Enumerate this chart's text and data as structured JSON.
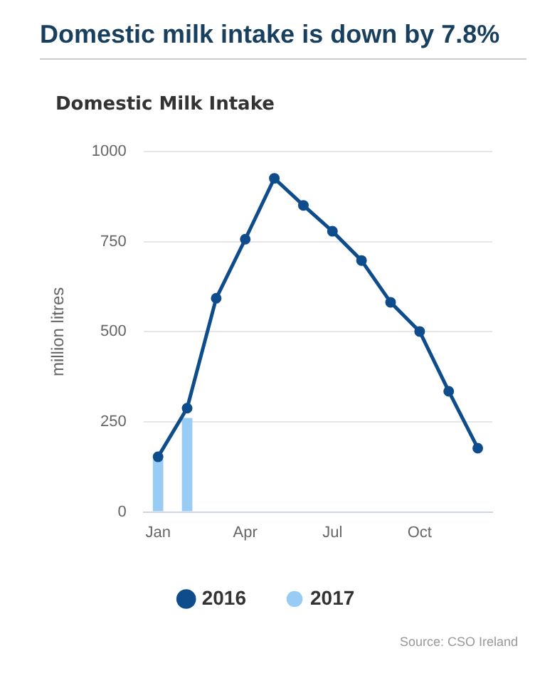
{
  "chart_data": {
    "type": "line",
    "title": "Domestic milk intake is down by 7.8%",
    "subtitle": "Domestic Milk Intake",
    "ylabel": "million litres",
    "categories": [
      "Jan",
      null,
      null,
      "Apr",
      null,
      null,
      "Jul",
      null,
      null,
      "Oct",
      null,
      null
    ],
    "series": [
      {
        "name": "2016",
        "color": "#0f4c8c",
        "values": [
          153,
          288,
          593,
          757,
          926,
          851,
          779,
          698,
          582,
          501,
          335,
          177
        ]
      },
      {
        "name": "2017",
        "type": "bar",
        "color": "#99ccf5",
        "values": [
          146,
          261,
          null,
          null,
          null,
          null,
          null,
          null,
          null,
          null,
          null,
          null
        ]
      }
    ],
    "ylim": [
      0,
      1000
    ],
    "yticks": [
      0,
      250,
      500,
      750,
      1000
    ],
    "grid": "y",
    "legend": "bottom",
    "marker": "circle",
    "line_style": "solid",
    "annotations": [
      "Source: CSO Ireland"
    ]
  }
}
